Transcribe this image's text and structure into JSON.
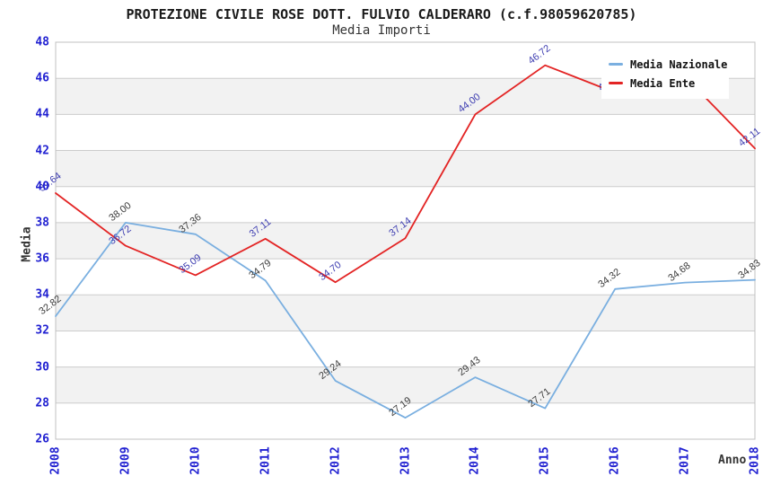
{
  "title": "PROTEZIONE CIVILE ROSE DOTT. FULVIO CALDERARO (c.f.98059620785)",
  "subtitle": "Media Importi",
  "legend": {
    "items": [
      {
        "label": "Media Nazionale",
        "color": "#7aafe0"
      },
      {
        "label": "Media Ente",
        "color": "#e32424"
      }
    ]
  },
  "colors": {
    "band": "#f2f2f2",
    "grid": "#cccccc",
    "border": "#c0c0c0",
    "tick_label": "#1f1fd1",
    "nazionale_line": "#7aafe0",
    "nazionale_point_label": "#3a3a3a",
    "ente_line": "#e32424",
    "ente_point_label": "#3b3bb0"
  },
  "chart_data": {
    "type": "line",
    "title": "PROTEZIONE CIVILE ROSE DOTT. FULVIO CALDERARO (c.f.98059620785)",
    "subtitle": "Media Importi",
    "x": [
      2008,
      2009,
      2010,
      2011,
      2012,
      2013,
      2014,
      2015,
      2016,
      2017,
      2018
    ],
    "xlabel": "Anno",
    "ylabel": "Media",
    "ylim": [
      26,
      48
    ],
    "ytick_step": 2,
    "grid": true,
    "alternating_bands": true,
    "legend_position": "top-right",
    "series": [
      {
        "name": "Media Nazionale",
        "color": "#7aafe0",
        "label_color": "#3a3a3a",
        "values": [
          32.82,
          38.0,
          37.36,
          34.79,
          29.24,
          27.19,
          29.43,
          27.71,
          34.32,
          34.68,
          34.83
        ]
      },
      {
        "name": "Media Ente",
        "color": "#e32424",
        "label_color": "#3b3bb0",
        "values": [
          39.64,
          36.72,
          35.09,
          37.11,
          34.7,
          37.14,
          44.0,
          46.72,
          45.21,
          46.1,
          42.11
        ],
        "labels_hidden_by_legend_indices": [
          8,
          9
        ],
        "estimated_value_indices": [
          8,
          9
        ]
      }
    ]
  }
}
